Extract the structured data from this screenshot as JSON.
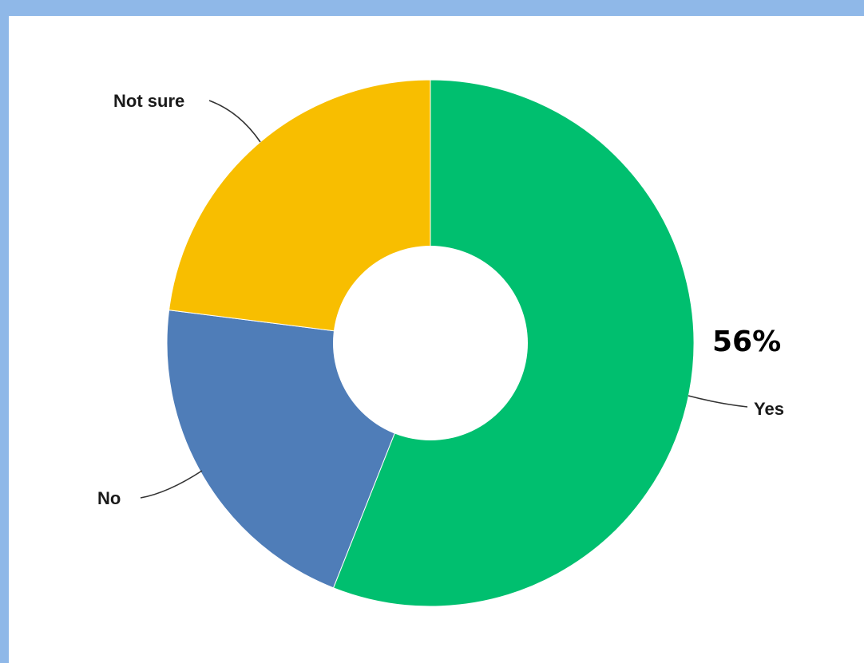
{
  "chart_data": {
    "type": "pie",
    "donut": true,
    "categories": [
      "Yes",
      "No",
      "Not sure"
    ],
    "values": [
      56,
      21,
      23
    ],
    "colors": [
      "#00bf6f",
      "#4f7db8",
      "#f8be00"
    ],
    "annotations": [
      {
        "category": "Yes",
        "text": "56%"
      }
    ]
  }
}
